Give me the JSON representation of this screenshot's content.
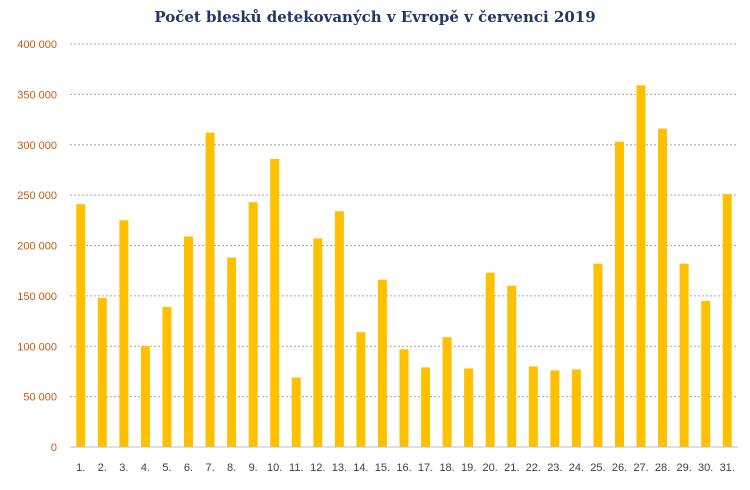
{
  "chart_data": {
    "type": "bar",
    "title": "Počet blesků detekovaných v Evropě v červenci 2019",
    "xlabel": "",
    "ylabel": "",
    "ylim": [
      0,
      400000
    ],
    "yticks": [
      0,
      50000,
      100000,
      150000,
      200000,
      250000,
      300000,
      350000,
      400000
    ],
    "ytick_labels": [
      "0",
      "50 000",
      "100 000",
      "150 000",
      "200 000",
      "250 000",
      "300 000",
      "350 000",
      "400 000"
    ],
    "grid": true,
    "bar_color": "#ffc000",
    "categories": [
      "1.",
      "2.",
      "3.",
      "4.",
      "5.",
      "6.",
      "7.",
      "8.",
      "9.",
      "10.",
      "11.",
      "12.",
      "13.",
      "14.",
      "15.",
      "16.",
      "17.",
      "18.",
      "19.",
      "20.",
      "21.",
      "22.",
      "23.",
      "24.",
      "25.",
      "26.",
      "27.",
      "28.",
      "29.",
      "30.",
      "31."
    ],
    "values": [
      241000,
      148000,
      225000,
      100000,
      139000,
      209000,
      312000,
      188000,
      243000,
      286000,
      69000,
      207000,
      234000,
      114000,
      166000,
      97000,
      79000,
      109000,
      78000,
      173000,
      160000,
      80000,
      76000,
      77000,
      182000,
      303000,
      359000,
      316000,
      182000,
      145000,
      251000
    ]
  }
}
